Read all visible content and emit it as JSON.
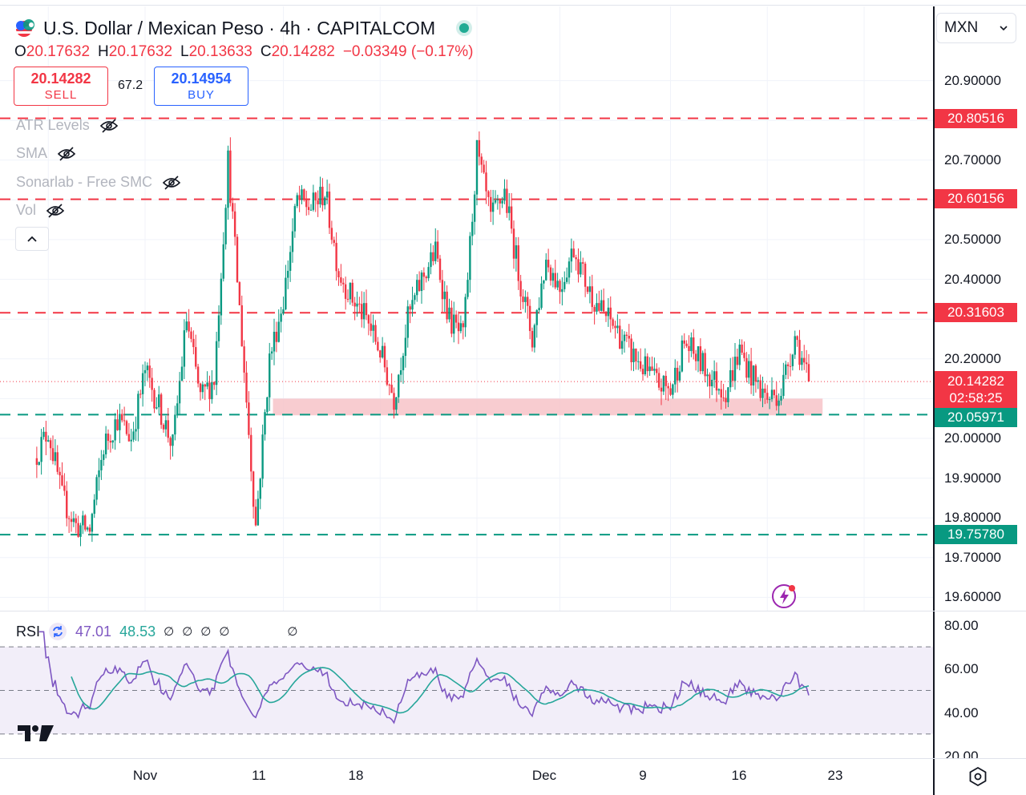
{
  "header": {
    "title": "U.S. Dollar / Mexican Peso · 4h · CAPITALCOM",
    "ohlc": [
      {
        "k": "O",
        "v": "20.17632"
      },
      {
        "k": "H",
        "v": "20.17632"
      },
      {
        "k": "L",
        "v": "20.13633"
      },
      {
        "k": "C",
        "v": "20.14282"
      }
    ],
    "change": "−0.03349 (−0.17%)",
    "sell_price": "20.14282",
    "sell_label": "SELL",
    "spread": "67.2",
    "buy_price": "20.14954",
    "buy_label": "BUY",
    "currency_selector": "MXN"
  },
  "indicators": [
    {
      "label": "ATR Levels",
      "icon": "eye-off-icon"
    },
    {
      "label": "SMA",
      "icon": "eye-off-icon"
    },
    {
      "label": "Sonarlab - Free SMC",
      "icon": "eye-off-icon"
    },
    {
      "label": "Vol",
      "icon": "eye-off-icon"
    }
  ],
  "rsi_legend": {
    "label": "RSI",
    "value1": "47.01",
    "value2": "48.53",
    "na": [
      "∅",
      "∅",
      "∅",
      "∅",
      "∅"
    ]
  },
  "colors": {
    "up": "#089981",
    "down": "#f23645",
    "rsi": "#7e57c2",
    "rsi_ma": "#26a69a",
    "zone": "#f7c3c8",
    "rsi_band": "#ede7f6"
  },
  "chart_data": [
    {
      "type": "candlestick",
      "title": "U.S. Dollar / Mexican Peso · 4h · CAPITALCOM",
      "y_ticks": [
        "20.90000",
        "20.70000",
        "20.50000",
        "20.40000",
        "20.20000",
        "20.00000",
        "19.90000",
        "19.80000",
        "19.70000",
        "19.60000"
      ],
      "x_ticks": [
        "Nov",
        "11",
        "18",
        "Dec",
        "9",
        "16",
        "23"
      ],
      "ylim": [
        19.6,
        20.95
      ],
      "levels": [
        {
          "value": 20.80516,
          "label": "20.80516",
          "color": "#f23645",
          "style": "dashed"
        },
        {
          "value": 20.60156,
          "label": "20.60156",
          "color": "#f23645",
          "style": "dashed"
        },
        {
          "value": 20.31603,
          "label": "20.31603",
          "color": "#f23645",
          "style": "dashed"
        },
        {
          "value": 20.05971,
          "label": "20.05971",
          "color": "#089981",
          "style": "dashed"
        },
        {
          "value": 19.7578,
          "label": "19.75780",
          "color": "#089981",
          "style": "dashed"
        }
      ],
      "current_price": {
        "value": 20.14282,
        "label": "20.14282",
        "countdown": "02:58:25"
      },
      "zone": {
        "from_x": "Nov 11",
        "to_x": "Dec 20",
        "y_low": 20.058,
        "y_high": 20.1
      },
      "close_path": [
        [
          "Oct 24",
          19.95
        ],
        [
          "Oct 25",
          20.02
        ],
        [
          "Oct 26",
          19.85
        ],
        [
          "Oct 27",
          19.78
        ],
        [
          "Oct 28",
          19.77
        ],
        [
          "Oct 29",
          19.98
        ],
        [
          "Oct 30",
          20.05
        ],
        [
          "Oct 31",
          20.0
        ],
        [
          "Nov 1",
          20.17
        ],
        [
          "Nov 2",
          20.08
        ],
        [
          "Nov 3",
          19.98
        ],
        [
          "Nov 4",
          20.3
        ],
        [
          "Nov 5",
          20.1
        ],
        [
          "Nov 6",
          20.15
        ],
        [
          "Nov 7",
          20.7
        ],
        [
          "Nov 8",
          20.25
        ],
        [
          "Nov 9",
          19.78
        ],
        [
          "Nov 10",
          20.2
        ],
        [
          "Nov 11",
          20.35
        ],
        [
          "Nov 12",
          20.6
        ],
        [
          "Nov 13",
          20.58
        ],
        [
          "Nov 14",
          20.62
        ],
        [
          "Nov 15",
          20.42
        ],
        [
          "Nov 16",
          20.35
        ],
        [
          "Nov 17",
          20.3
        ],
        [
          "Nov 18",
          20.22
        ],
        [
          "Nov 19",
          20.1
        ],
        [
          "Nov 20",
          20.3
        ],
        [
          "Nov 21",
          20.4
        ],
        [
          "Nov 22",
          20.47
        ],
        [
          "Nov 23",
          20.3
        ],
        [
          "Nov 24",
          20.25
        ],
        [
          "Nov 25",
          20.72
        ],
        [
          "Nov 26",
          20.55
        ],
        [
          "Nov 27",
          20.62
        ],
        [
          "Nov 28",
          20.42
        ],
        [
          "Nov 29",
          20.25
        ],
        [
          "Nov 30",
          20.45
        ],
        [
          "Dec 1",
          20.38
        ],
        [
          "Dec 2",
          20.48
        ],
        [
          "Dec 3",
          20.38
        ],
        [
          "Dec 4",
          20.32
        ],
        [
          "Dec 5",
          20.28
        ],
        [
          "Dec 6",
          20.22
        ],
        [
          "Dec 7",
          20.18
        ],
        [
          "Dec 8",
          20.14
        ],
        [
          "Dec 9",
          20.12
        ],
        [
          "Dec 10",
          20.24
        ],
        [
          "Dec 11",
          20.2
        ],
        [
          "Dec 12",
          20.15
        ],
        [
          "Dec 13",
          20.12
        ],
        [
          "Dec 14",
          20.22
        ],
        [
          "Dec 15",
          20.15
        ],
        [
          "Dec 16",
          20.1
        ],
        [
          "Dec 17",
          20.12
        ],
        [
          "Dec 18",
          20.26
        ],
        [
          "Dec 19",
          20.14
        ]
      ]
    },
    {
      "type": "line",
      "name": "RSI",
      "y_ticks": [
        "80.00",
        "60.00",
        "40.00",
        "20.00"
      ],
      "ylim": [
        20,
        80
      ],
      "bands": [
        70,
        50,
        30
      ],
      "current": [
        47.01,
        48.53
      ]
    }
  ]
}
